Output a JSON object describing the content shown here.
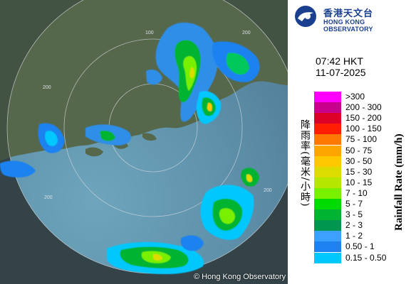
{
  "header": {
    "logo_cn": "香港天文台",
    "logo_en": "HONG KONG OBSERVATORY"
  },
  "timestamp": {
    "time": "07:42 HKT",
    "date": "11-07-2025"
  },
  "legend": {
    "title_cn": "降雨率(毫米/小時)",
    "title_en": "Rainfall Rate (mm/h)",
    "items": [
      {
        "label": ">300",
        "color": "#ff00ff"
      },
      {
        "label": "200 - 300",
        "color": "#c8008c"
      },
      {
        "label": "150 - 200",
        "color": "#dc0028"
      },
      {
        "label": "100 - 150",
        "color": "#ff1e00"
      },
      {
        "label": "75 - 100",
        "color": "#ff7800"
      },
      {
        "label": "50 - 75",
        "color": "#ffa500"
      },
      {
        "label": "30 - 50",
        "color": "#ffc800"
      },
      {
        "label": "15 - 30",
        "color": "#dcdc00"
      },
      {
        "label": "10 - 15",
        "color": "#b4e600"
      },
      {
        "label": "7 - 10",
        "color": "#78f000"
      },
      {
        "label": "5 - 7",
        "color": "#00dc00"
      },
      {
        "label": "3 - 5",
        "color": "#00b432"
      },
      {
        "label": "2 - 3",
        "color": "#009650"
      },
      {
        "label": "1 - 2",
        "color": "#3ca0ff"
      },
      {
        "label": "0.50 - 1",
        "color": "#1e82f0"
      },
      {
        "label": "0.15 - 0.50",
        "color": "#00c8ff"
      }
    ]
  },
  "map": {
    "copyright": "© Hong Kong Observatory",
    "range_labels": [
      "100",
      "200",
      "200",
      "200",
      "200"
    ],
    "land_color": "#55664d",
    "sea_color": "#5f8fa8"
  }
}
